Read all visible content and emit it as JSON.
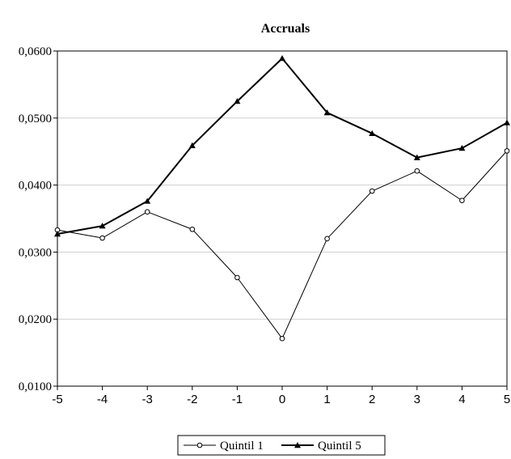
{
  "chart_data": {
    "type": "line",
    "title": "Accruals",
    "xlabel": "",
    "ylabel": "",
    "x": [
      -5,
      -4,
      -3,
      -2,
      -1,
      0,
      1,
      2,
      3,
      4,
      5
    ],
    "x_tick_labels": [
      "-5",
      "-4",
      "-3",
      "-2",
      "-1",
      "0",
      "1",
      "2",
      "3",
      "4",
      "5"
    ],
    "ylim": [
      0.01,
      0.06
    ],
    "y_ticks": [
      0.01,
      0.02,
      0.03,
      0.04,
      0.05,
      0.06
    ],
    "y_tick_labels": [
      "0,0100",
      "0,0200",
      "0,0300",
      "0,0400",
      "0,0500",
      "0,0600"
    ],
    "grid": "horizontal",
    "legend_position": "bottom",
    "series": [
      {
        "name": "Quintil 1",
        "marker": "open-circle",
        "color": "#000000",
        "values": [
          0.0333,
          0.0321,
          0.036,
          0.0334,
          0.0262,
          0.0171,
          0.032,
          0.0391,
          0.0421,
          0.0377,
          0.0451
        ]
      },
      {
        "name": "Quintil 5",
        "marker": "filled-triangle",
        "color": "#000000",
        "values": [
          0.0327,
          0.0339,
          0.0376,
          0.0459,
          0.0525,
          0.0589,
          0.0508,
          0.0477,
          0.0441,
          0.0455,
          0.0493
        ]
      }
    ]
  }
}
